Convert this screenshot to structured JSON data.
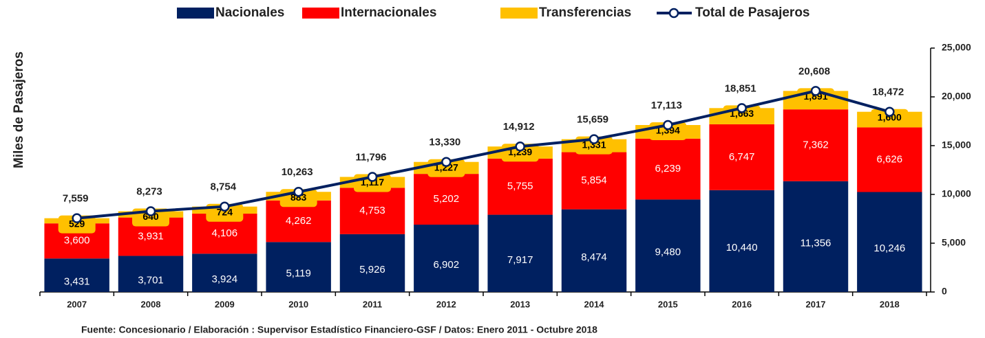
{
  "chart_data": {
    "type": "bar",
    "stacked": true,
    "y_label": "Miles de Pasajeros",
    "source": "Fuente: Concesionario / Elaboración : Supervisor Estadístico Financiero-GSF / Datos: Enero 2011 - Octubre 2018",
    "categories": [
      "2007",
      "2008",
      "2009",
      "2010",
      "2011",
      "2012",
      "2013",
      "2014",
      "2015",
      "2016",
      "2017",
      "2018"
    ],
    "series": [
      {
        "name": "Nacionales",
        "type": "bar",
        "color": "#002060",
        "values": [
          3431,
          3701,
          3924,
          5119,
          5926,
          6902,
          7917,
          8474,
          9480,
          10440,
          11356,
          10246
        ],
        "value_labels": [
          "3,431",
          "3,701",
          "3,924",
          "5,119",
          "5,926",
          "6,902",
          "7,917",
          "8,474",
          "9,480",
          "10,440",
          "11,356",
          "10,246"
        ]
      },
      {
        "name": "Internacionales",
        "type": "bar",
        "color": "#ff0000",
        "values": [
          3600,
          3931,
          4106,
          4262,
          4753,
          5202,
          5755,
          5854,
          6239,
          6747,
          7362,
          6626
        ],
        "value_labels": [
          "3,600",
          "3,931",
          "4,106",
          "4,262",
          "4,753",
          "5,202",
          "5,755",
          "5,854",
          "6,239",
          "6,747",
          "7,362",
          "6,626"
        ]
      },
      {
        "name": "Transferencias",
        "type": "bar",
        "color": "#ffc000",
        "values": [
          529,
          640,
          724,
          883,
          1117,
          1227,
          1239,
          1331,
          1394,
          1663,
          1891,
          1600
        ],
        "value_labels": [
          "529",
          "640",
          "724",
          "883",
          "1,117",
          "1,227",
          "1,239",
          "1,331",
          "1,394",
          "1,663",
          "1,891",
          "1,600"
        ]
      },
      {
        "name": "Total de Pasajeros",
        "type": "line",
        "color": "#002060",
        "values": [
          7559,
          8273,
          8754,
          10263,
          11796,
          13330,
          14912,
          15659,
          17113,
          18851,
          20608,
          18472
        ],
        "value_labels": [
          "7,559",
          "8,273",
          "8,754",
          "10,263",
          "11,796",
          "13,330",
          "14,912",
          "15,659",
          "17,113",
          "18,851",
          "20,608",
          "18,472"
        ]
      }
    ],
    "ylim": [
      0,
      25000
    ],
    "yticks": [
      0,
      {
        "value": 5000,
        "label": "5,000"
      },
      {
        "value": 10000,
        "label": "10,000"
      },
      {
        "value": 15000,
        "label": "15,000"
      },
      {
        "value": 20000,
        "label": "20,000"
      },
      {
        "value": 25000,
        "label": "25,000"
      }
    ],
    "y_axis_side": "right",
    "grid": false,
    "legend": "top"
  }
}
